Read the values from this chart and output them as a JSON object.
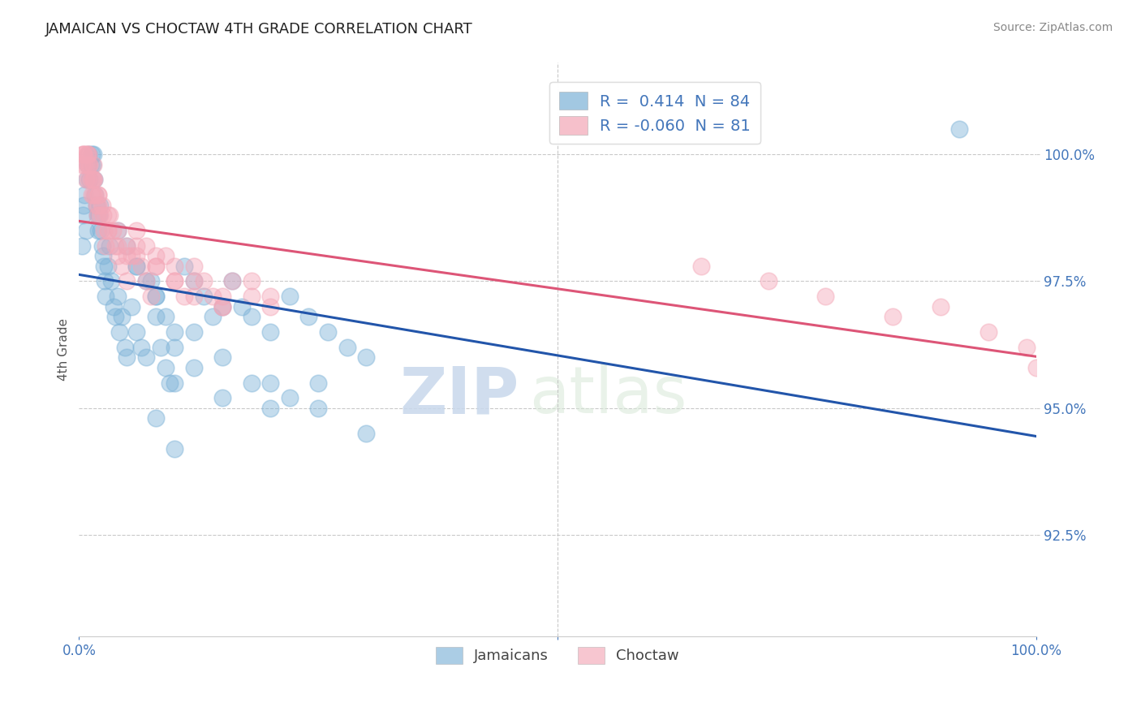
{
  "title": "JAMAICAN VS CHOCTAW 4TH GRADE CORRELATION CHART",
  "source": "Source: ZipAtlas.com",
  "ylabel": "4th Grade",
  "xlim": [
    0.0,
    100.0
  ],
  "ylim": [
    90.5,
    101.8
  ],
  "yticks": [
    92.5,
    95.0,
    97.5,
    100.0
  ],
  "ytick_labels": [
    "92.5%",
    "95.0%",
    "97.5%",
    "100.0%"
  ],
  "jamaican_R": 0.414,
  "jamaican_N": 84,
  "choctaw_R": -0.06,
  "choctaw_N": 81,
  "blue_color": "#7EB3D8",
  "pink_color": "#F4A8B8",
  "blue_line_color": "#2255AA",
  "pink_line_color": "#DD5577",
  "blue_tick_color": "#4477BB",
  "watermark_zip": "ZIP",
  "watermark_atlas": "atlas",
  "legend_label_blue": "Jamaicans",
  "legend_label_pink": "Choctaw",
  "jamaican_x": [
    0.3,
    0.4,
    0.5,
    0.6,
    0.7,
    0.8,
    0.9,
    1.0,
    1.1,
    1.2,
    1.3,
    1.4,
    1.5,
    1.6,
    1.7,
    1.8,
    1.9,
    2.0,
    2.1,
    2.2,
    2.3,
    2.4,
    2.5,
    2.6,
    2.7,
    2.8,
    3.0,
    3.2,
    3.4,
    3.6,
    3.8,
    4.0,
    4.2,
    4.5,
    4.8,
    5.0,
    5.5,
    6.0,
    6.5,
    7.0,
    7.5,
    8.0,
    8.5,
    9.0,
    9.5,
    10.0,
    11.0,
    12.0,
    13.0,
    14.0,
    15.0,
    16.0,
    17.0,
    18.0,
    20.0,
    22.0,
    24.0,
    26.0,
    28.0,
    30.0,
    10.0,
    12.0,
    15.0,
    18.0,
    20.0,
    22.0,
    25.0,
    6.0,
    8.0,
    10.0,
    4.0,
    5.0,
    6.0,
    7.0,
    8.0,
    9.0,
    12.0,
    15.0,
    20.0,
    25.0,
    30.0,
    8.0,
    10.0,
    92.0
  ],
  "jamaican_y": [
    98.2,
    98.8,
    99.0,
    99.2,
    98.5,
    99.5,
    99.8,
    100.0,
    99.5,
    99.8,
    100.0,
    99.8,
    100.0,
    99.5,
    99.2,
    99.0,
    98.8,
    98.5,
    98.8,
    99.0,
    98.5,
    98.2,
    98.0,
    97.8,
    97.5,
    97.2,
    97.8,
    98.2,
    97.5,
    97.0,
    96.8,
    97.2,
    96.5,
    96.8,
    96.2,
    96.0,
    97.0,
    96.5,
    96.2,
    96.0,
    97.5,
    96.8,
    96.2,
    95.8,
    95.5,
    96.2,
    97.8,
    97.5,
    97.2,
    96.8,
    97.0,
    97.5,
    97.0,
    96.8,
    96.5,
    97.2,
    96.8,
    96.5,
    96.2,
    96.0,
    95.5,
    95.8,
    95.2,
    95.5,
    95.0,
    95.2,
    95.5,
    97.8,
    97.2,
    96.5,
    98.5,
    98.2,
    97.8,
    97.5,
    97.2,
    96.8,
    96.5,
    96.0,
    95.5,
    95.0,
    94.5,
    94.8,
    94.2,
    100.5
  ],
  "choctaw_x": [
    0.3,
    0.4,
    0.5,
    0.6,
    0.7,
    0.8,
    0.9,
    1.0,
    1.1,
    1.2,
    1.3,
    1.4,
    1.5,
    1.6,
    1.7,
    1.8,
    1.9,
    2.0,
    2.2,
    2.4,
    2.6,
    2.8,
    3.0,
    3.2,
    3.5,
    3.8,
    4.0,
    4.5,
    5.0,
    5.5,
    6.0,
    6.5,
    7.0,
    7.5,
    8.0,
    9.0,
    10.0,
    11.0,
    12.0,
    13.0,
    14.0,
    15.0,
    16.0,
    18.0,
    20.0,
    1.0,
    1.5,
    2.0,
    2.5,
    3.0,
    4.0,
    5.0,
    6.0,
    7.0,
    8.0,
    10.0,
    12.0,
    15.0,
    0.5,
    0.8,
    1.0,
    1.5,
    2.0,
    3.0,
    4.0,
    5.0,
    6.0,
    8.0,
    10.0,
    12.0,
    15.0,
    18.0,
    20.0,
    65.0,
    72.0,
    78.0,
    85.0,
    90.0,
    95.0,
    99.0,
    100.0
  ],
  "choctaw_y": [
    99.8,
    100.0,
    100.0,
    99.8,
    99.5,
    99.8,
    100.0,
    100.0,
    99.8,
    99.5,
    99.2,
    99.5,
    99.8,
    99.5,
    99.2,
    99.0,
    98.8,
    99.2,
    98.8,
    99.0,
    98.5,
    98.2,
    98.5,
    98.8,
    98.5,
    98.2,
    98.0,
    97.8,
    97.5,
    98.0,
    98.2,
    97.8,
    97.5,
    97.2,
    97.8,
    98.0,
    97.5,
    97.2,
    97.8,
    97.5,
    97.2,
    97.0,
    97.5,
    97.2,
    97.0,
    99.5,
    99.2,
    99.0,
    98.8,
    98.5,
    98.2,
    98.0,
    98.5,
    98.2,
    98.0,
    97.8,
    97.5,
    97.2,
    100.0,
    100.0,
    99.8,
    99.5,
    99.2,
    98.8,
    98.5,
    98.2,
    98.0,
    97.8,
    97.5,
    97.2,
    97.0,
    97.5,
    97.2,
    97.8,
    97.5,
    97.2,
    96.8,
    97.0,
    96.5,
    96.2,
    95.8
  ]
}
